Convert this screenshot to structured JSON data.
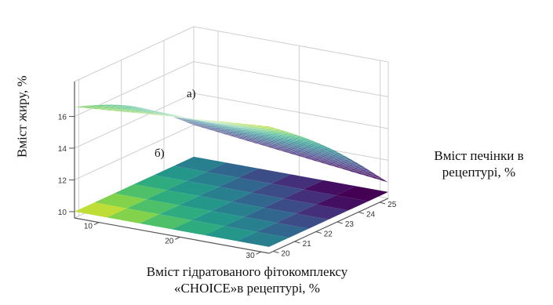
{
  "chart_data": {
    "type": "surface3d",
    "title": "",
    "axes": {
      "x": {
        "label_line1": "Вміст гідратованого фітокомплексу",
        "label_line2": "«CHOICE»в рецептурі, %",
        "ticks": [
          "10",
          "20",
          "30"
        ],
        "range": [
          7,
          31
        ]
      },
      "z": {
        "label_line1": "Вміст печінки в",
        "label_line2": "рецептурі, %",
        "ticks": [
          "20",
          "21",
          "22",
          "23",
          "24",
          "25"
        ],
        "range": [
          19.8,
          25.4
        ]
      },
      "y": {
        "label": "Вміст жиру, %",
        "ticks": [
          "10",
          "12",
          "14",
          "16"
        ],
        "range": [
          9.6,
          18.2
        ]
      }
    },
    "surface_labels": [
      "а)",
      "б)"
    ],
    "surface_a": {
      "x": [
        7,
        31
      ],
      "z": [
        19.8,
        25.4
      ],
      "corners_y": {
        "x_low_z_low": 16.6,
        "x_high_z_low": 17.6,
        "x_low_z_high": 12.0,
        "x_high_z_high": 10.6
      }
    },
    "surface_b": {
      "floor_level": 10,
      "gradient": "decreasing from low x / low z (yellow) to high x / high z (dark blue)"
    },
    "colormap": [
      "#fde725",
      "#8fd744",
      "#35b779",
      "#21918c",
      "#31688e",
      "#443983",
      "#440154"
    ],
    "grid": true
  }
}
